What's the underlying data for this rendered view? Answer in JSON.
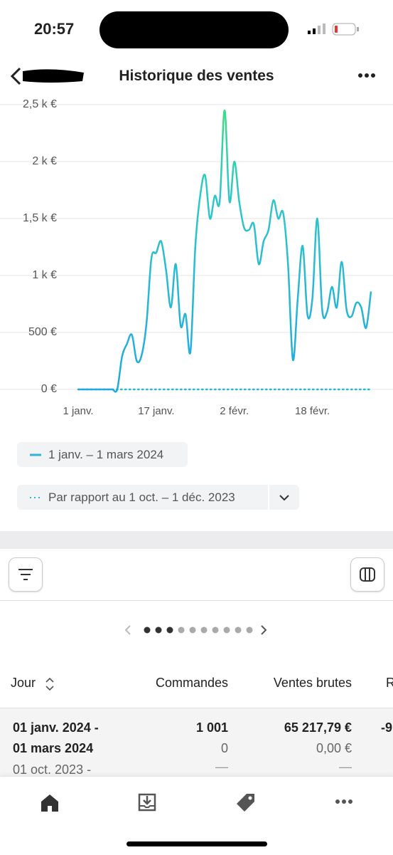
{
  "status_bar": {
    "time": "20:57"
  },
  "header": {
    "title": "Historique des ventes"
  },
  "chart_data": {
    "type": "line",
    "categories": [
      "1 janv.",
      null,
      null,
      null,
      null,
      null,
      null,
      null,
      null,
      null,
      null,
      null,
      null,
      null,
      null,
      null,
      "17 janv.",
      null,
      null,
      null,
      null,
      null,
      null,
      null,
      null,
      null,
      null,
      null,
      null,
      null,
      null,
      null,
      "2 févr.",
      null,
      null,
      null,
      null,
      null,
      null,
      null,
      null,
      null,
      null,
      null,
      null,
      null,
      null,
      null,
      "18 févr.",
      null,
      null,
      null,
      null,
      null,
      null,
      null,
      null,
      null,
      null,
      null,
      null
    ],
    "series": [
      {
        "name": "1 janv. – 1 mars 2024",
        "color": "#29b6d8",
        "style": "solid",
        "values": [
          0,
          0,
          0,
          0,
          0,
          0,
          0,
          0,
          0,
          290,
          400,
          480,
          250,
          300,
          580,
          1150,
          1200,
          1300,
          1050,
          720,
          1100,
          560,
          660,
          330,
          1250,
          1700,
          1880,
          1500,
          1700,
          1650,
          2450,
          1650,
          2000,
          1650,
          1420,
          1400,
          1450,
          1100,
          1300,
          1400,
          1660,
          1500,
          1550,
          1100,
          260,
          800,
          1260,
          650,
          800,
          1500,
          700,
          680,
          900,
          720,
          1120,
          700,
          640,
          760,
          720,
          540,
          860
        ]
      },
      {
        "name": "Par rapport au 1 oct. – 1 déc. 2023",
        "color": "#29b6d8",
        "style": "dotted",
        "values": [
          0,
          0,
          0,
          0,
          0,
          0,
          0,
          0,
          0,
          0,
          0,
          0,
          0,
          0,
          0,
          0,
          0,
          0,
          0,
          0,
          0,
          0,
          0,
          0,
          0,
          0,
          0,
          0,
          0,
          0,
          0,
          0,
          0,
          0,
          0,
          0,
          0,
          0,
          0,
          0,
          0,
          0,
          0,
          0,
          0,
          0,
          0,
          0,
          0,
          0,
          0,
          0,
          0,
          0,
          0,
          0,
          0,
          0,
          0,
          0,
          0
        ]
      }
    ],
    "ylim": [
      0,
      2500
    ],
    "yticks": [
      {
        "value": 0,
        "label": "0 €"
      },
      {
        "value": 500,
        "label": "500 €"
      },
      {
        "value": 1000,
        "label": "1 k €"
      },
      {
        "value": 1500,
        "label": "1,5 k €"
      },
      {
        "value": 2000,
        "label": "2 k €"
      },
      {
        "value": 2500,
        "label": "2,5 k €"
      }
    ],
    "grid": true
  },
  "table": {
    "columns": [
      "Jour",
      "Commandes",
      "Ventes brutes",
      "R"
    ],
    "rows": [
      [
        "01 janv. 2024 -",
        "1 001",
        "65 217,79 €",
        "-9"
      ],
      [
        "01 mars 2024",
        "0",
        "0,00 €"
      ],
      [
        "01 oct. 2023 -",
        "—",
        "—"
      ]
    ]
  }
}
